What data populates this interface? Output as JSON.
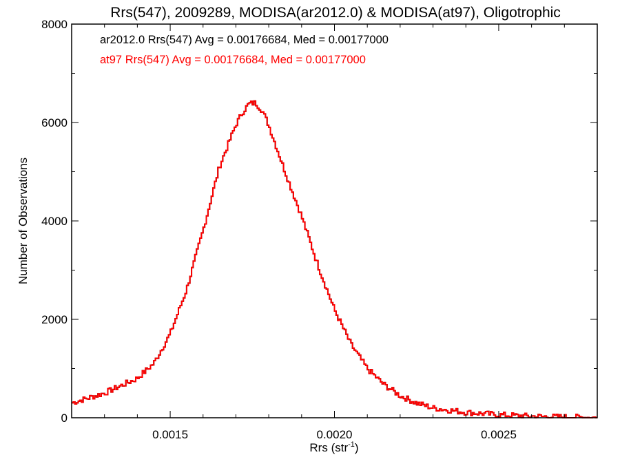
{
  "chart_data": {
    "type": "line",
    "title": "Rrs(547), 2009289, MODISA(ar2012.0) & MODISA(at97), Oligotrophic",
    "xlabel": "Rrs (str",
    "xlabel_sup": "-1",
    "xlabel_close": ")",
    "ylabel": "Number of Observations",
    "xlim": [
      0.0012,
      0.0028
    ],
    "ylim": [
      0,
      8000
    ],
    "grid": false,
    "x_ticks": [
      {
        "value": 0.0015,
        "label": "0.0015"
      },
      {
        "value": 0.002,
        "label": "0.0020"
      },
      {
        "value": 0.0025,
        "label": "0.0025"
      }
    ],
    "y_ticks": [
      {
        "value": 0,
        "label": "0"
      },
      {
        "value": 2000,
        "label": "2000"
      },
      {
        "value": 4000,
        "label": "4000"
      },
      {
        "value": 6000,
        "label": "6000"
      },
      {
        "value": 8000,
        "label": "8000"
      }
    ],
    "annotations": [
      {
        "text": "ar2012.0 Rrs(547) Avg = 0.00176684, Med = 0.00177000",
        "color": "#000000"
      },
      {
        "text": "at97 Rrs(547) Avg = 0.00176684, Med = 0.00177000",
        "color": "#ff0000"
      }
    ],
    "series": [
      {
        "name": "ar2012.0",
        "color": "#000000",
        "x": [
          0.0012,
          0.0013,
          0.00135,
          0.0014,
          0.00145,
          0.0015,
          0.00155,
          0.0016,
          0.00165,
          0.0017,
          0.00172,
          0.00174,
          0.00176,
          0.00178,
          0.0018,
          0.00185,
          0.0019,
          0.00195,
          0.002,
          0.00205,
          0.0021,
          0.00215,
          0.0022,
          0.00225,
          0.0023,
          0.0024,
          0.0025,
          0.0026,
          0.0027,
          0.0028
        ],
        "y": [
          300,
          500,
          650,
          800,
          1100,
          1700,
          2600,
          3800,
          5100,
          5950,
          6200,
          6380,
          6400,
          6250,
          5950,
          5000,
          4100,
          3100,
          2200,
          1500,
          1000,
          680,
          450,
          300,
          200,
          110,
          60,
          30,
          15,
          5
        ]
      },
      {
        "name": "at97",
        "color": "#ff0000",
        "x": [
          0.0012,
          0.0013,
          0.00135,
          0.0014,
          0.00145,
          0.0015,
          0.00155,
          0.0016,
          0.00165,
          0.0017,
          0.00172,
          0.00174,
          0.00176,
          0.00178,
          0.0018,
          0.00185,
          0.0019,
          0.00195,
          0.002,
          0.00205,
          0.0021,
          0.00215,
          0.0022,
          0.00225,
          0.0023,
          0.0024,
          0.0025,
          0.0026,
          0.0027,
          0.0028
        ],
        "y": [
          300,
          500,
          650,
          800,
          1100,
          1700,
          2600,
          3800,
          5100,
          5950,
          6200,
          6380,
          6400,
          6250,
          5950,
          5000,
          4100,
          3100,
          2200,
          1500,
          1000,
          680,
          450,
          300,
          200,
          110,
          60,
          30,
          15,
          5
        ]
      }
    ]
  }
}
